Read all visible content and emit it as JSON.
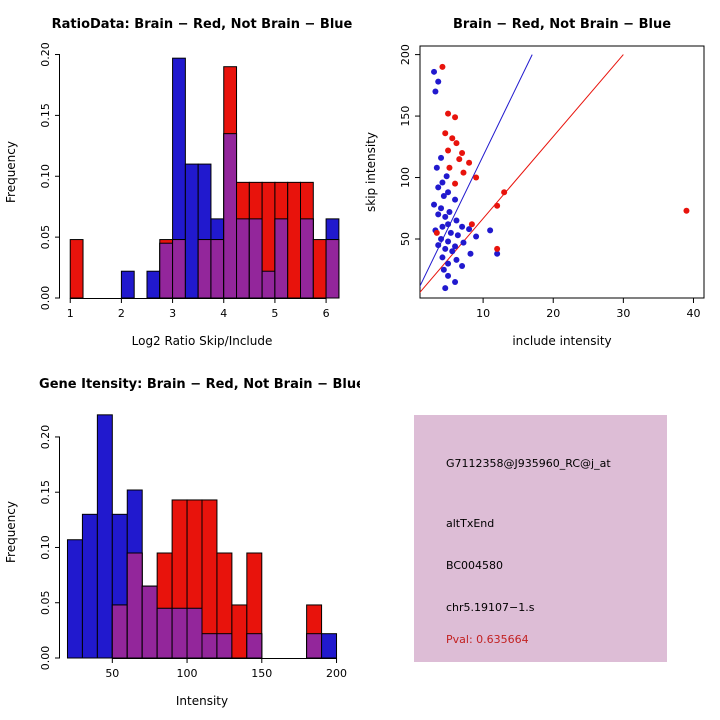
{
  "colors": {
    "brain": "#E8130C",
    "not_brain": "#2119CE",
    "overlap": "#93269B",
    "axis": "#000000",
    "info_bg": "#DDBDD6",
    "pval": "#C22121"
  },
  "chart_data": [
    {
      "id": "ratio-histogram",
      "type": "bar",
      "title": "RatioData: Brain − Red, Not Brain − Blue",
      "xlabel": "Log2 Ratio Skip/Include",
      "ylabel": "Frequency",
      "xlim": [
        0.8,
        6.35
      ],
      "ylim": [
        0,
        0.207
      ],
      "bin_width": 0.25,
      "xticks": [
        {
          "v": 1,
          "label": "1"
        },
        {
          "v": 2,
          "label": "2"
        },
        {
          "v": 3,
          "label": "3"
        },
        {
          "v": 4,
          "label": "4"
        },
        {
          "v": 5,
          "label": "5"
        },
        {
          "v": 6,
          "label": "6"
        }
      ],
      "yticks": [
        {
          "v": 0,
          "label": "0.00"
        },
        {
          "v": 0.05,
          "label": "0.05"
        },
        {
          "v": 0.1,
          "label": "0.10"
        },
        {
          "v": 0.15,
          "label": "0.15"
        },
        {
          "v": 0.2,
          "label": "0.20"
        }
      ],
      "bins": [
        {
          "x0": 1.0,
          "blue": 0,
          "red": 0.048
        },
        {
          "x0": 2.0,
          "blue": 0.022,
          "red": 0
        },
        {
          "x0": 2.5,
          "blue": 0.022,
          "red": 0
        },
        {
          "x0": 2.75,
          "blue": 0.045,
          "red": 0.048
        },
        {
          "x0": 3.0,
          "blue": 0.197,
          "red": 0.048
        },
        {
          "x0": 3.25,
          "blue": 0.11,
          "red": 0
        },
        {
          "x0": 3.5,
          "blue": 0.11,
          "red": 0.048
        },
        {
          "x0": 3.75,
          "blue": 0.065,
          "red": 0.048
        },
        {
          "x0": 4.0,
          "blue": 0.135,
          "red": 0.19
        },
        {
          "x0": 4.25,
          "blue": 0.065,
          "red": 0.095
        },
        {
          "x0": 4.5,
          "blue": 0.065,
          "red": 0.095
        },
        {
          "x0": 4.75,
          "blue": 0.022,
          "red": 0.095
        },
        {
          "x0": 5.0,
          "blue": 0.065,
          "red": 0.095
        },
        {
          "x0": 5.25,
          "blue": 0,
          "red": 0.095
        },
        {
          "x0": 5.5,
          "blue": 0.065,
          "red": 0.095
        },
        {
          "x0": 5.75,
          "blue": 0,
          "red": 0.048
        },
        {
          "x0": 6.0,
          "blue": 0.065,
          "red": 0.048
        }
      ]
    },
    {
      "id": "intensity-scatter",
      "type": "scatter",
      "title": "Brain − Red, Not Brain − Blue",
      "xlabel": "include intensity",
      "ylabel": "skip intensity",
      "xlim": [
        1,
        41.5
      ],
      "ylim": [
        2,
        207
      ],
      "xticks": [
        {
          "v": 10,
          "label": "10"
        },
        {
          "v": 20,
          "label": "20"
        },
        {
          "v": 30,
          "label": "30"
        },
        {
          "v": 40,
          "label": "40"
        }
      ],
      "yticks": [
        {
          "v": 50,
          "label": "50"
        },
        {
          "v": 100,
          "label": "100"
        },
        {
          "v": 150,
          "label": "150"
        },
        {
          "v": 200,
          "label": "200"
        }
      ],
      "series": [
        {
          "name": "Not Brain",
          "color_key": "not_brain",
          "points": [
            [
              3,
              186
            ],
            [
              3.6,
              178
            ],
            [
              3.2,
              170
            ],
            [
              4,
              116
            ],
            [
              3.4,
              108
            ],
            [
              4.8,
              101
            ],
            [
              4.2,
              96
            ],
            [
              3.6,
              92
            ],
            [
              5,
              88
            ],
            [
              4.4,
              85
            ],
            [
              6,
              82
            ],
            [
              3,
              78
            ],
            [
              4,
              75
            ],
            [
              5.2,
              72
            ],
            [
              3.6,
              70
            ],
            [
              4.6,
              68
            ],
            [
              6.2,
              65
            ],
            [
              5,
              62
            ],
            [
              4.2,
              60
            ],
            [
              7,
              60
            ],
            [
              8,
              58
            ],
            [
              3.2,
              57
            ],
            [
              5.4,
              55
            ],
            [
              6.4,
              53
            ],
            [
              9,
              52
            ],
            [
              4,
              50
            ],
            [
              5,
              48
            ],
            [
              7.2,
              47
            ],
            [
              3.6,
              45
            ],
            [
              6,
              44
            ],
            [
              4.6,
              42
            ],
            [
              5.6,
              40
            ],
            [
              8.2,
              38
            ],
            [
              4.2,
              35
            ],
            [
              6.2,
              33
            ],
            [
              5,
              30
            ],
            [
              7,
              28
            ],
            [
              4.4,
              25
            ],
            [
              5,
              20
            ],
            [
              6,
              15
            ],
            [
              4.6,
              10
            ],
            [
              11,
              57
            ],
            [
              12,
              38
            ]
          ]
        },
        {
          "name": "Brain",
          "color_key": "brain",
          "points": [
            [
              4.2,
              190
            ],
            [
              5,
              152
            ],
            [
              6,
              149
            ],
            [
              4.6,
              136
            ],
            [
              5.6,
              132
            ],
            [
              6.2,
              128
            ],
            [
              5,
              122
            ],
            [
              7,
              120
            ],
            [
              6.6,
              115
            ],
            [
              8,
              112
            ],
            [
              5.2,
              108
            ],
            [
              7.2,
              104
            ],
            [
              9,
              100
            ],
            [
              6,
              95
            ],
            [
              13,
              88
            ],
            [
              12,
              77
            ],
            [
              39,
              73
            ],
            [
              8.4,
              62
            ],
            [
              12,
              42
            ],
            [
              3.4,
              55
            ]
          ]
        }
      ],
      "lines": [
        {
          "color_key": "not_brain",
          "from": [
            0,
            0
          ],
          "to": [
            17,
            200
          ]
        },
        {
          "color_key": "brain",
          "from": [
            0,
            0
          ],
          "to": [
            30,
            200
          ]
        }
      ]
    },
    {
      "id": "gene-intensity-histogram",
      "type": "bar",
      "title": "Gene Itensity: Brain − Red, Not Brain − Blue",
      "xlabel": "Intensity",
      "ylabel": "Frequency",
      "xlim": [
        15,
        205
      ],
      "ylim": [
        0,
        0.228
      ],
      "bin_width": 10,
      "xticks": [
        {
          "v": 50,
          "label": "50"
        },
        {
          "v": 100,
          "label": "100"
        },
        {
          "v": 150,
          "label": "150"
        },
        {
          "v": 200,
          "label": "200"
        }
      ],
      "yticks": [
        {
          "v": 0,
          "label": "0.00"
        },
        {
          "v": 0.05,
          "label": "0.05"
        },
        {
          "v": 0.1,
          "label": "0.10"
        },
        {
          "v": 0.15,
          "label": "0.15"
        },
        {
          "v": 0.2,
          "label": "0.20"
        }
      ],
      "bins": [
        {
          "x0": 20,
          "blue": 0.107,
          "red": 0
        },
        {
          "x0": 30,
          "blue": 0.13,
          "red": 0
        },
        {
          "x0": 40,
          "blue": 0.22,
          "red": 0
        },
        {
          "x0": 50,
          "blue": 0.13,
          "red": 0.048
        },
        {
          "x0": 60,
          "blue": 0.152,
          "red": 0.095
        },
        {
          "x0": 70,
          "blue": 0.065,
          "red": 0.065
        },
        {
          "x0": 80,
          "blue": 0.045,
          "red": 0.095
        },
        {
          "x0": 90,
          "blue": 0.045,
          "red": 0.143
        },
        {
          "x0": 100,
          "blue": 0.045,
          "red": 0.143
        },
        {
          "x0": 110,
          "blue": 0.022,
          "red": 0.143
        },
        {
          "x0": 120,
          "blue": 0.022,
          "red": 0.095
        },
        {
          "x0": 130,
          "blue": 0,
          "red": 0.048
        },
        {
          "x0": 140,
          "blue": 0.022,
          "red": 0.095
        },
        {
          "x0": 180,
          "blue": 0.022,
          "red": 0.048
        },
        {
          "x0": 190,
          "blue": 0.022,
          "red": 0
        }
      ]
    }
  ],
  "info_panel": {
    "lines": [
      {
        "text": "G7112358@J935960_RC@j_at",
        "color": "black"
      },
      {
        "text": "altTxEnd",
        "color": "black"
      },
      {
        "text": "BC004580",
        "color": "black"
      },
      {
        "text": "chr5.19107−1.s",
        "color": "black"
      },
      {
        "text": "Pval: 0.635664",
        "color": "red"
      }
    ]
  }
}
